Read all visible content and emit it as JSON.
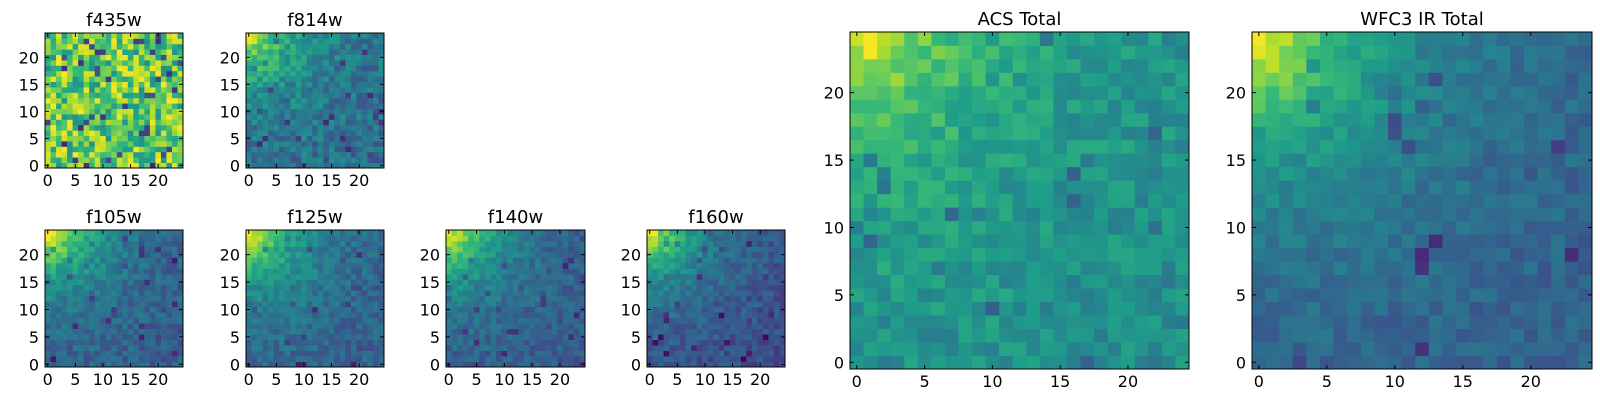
{
  "figure": {
    "background": "#ffffff"
  },
  "colormap": {
    "name": "viridis",
    "stops": [
      "#440154",
      "#482878",
      "#3e4989",
      "#31688e",
      "#26828e",
      "#1f9e89",
      "#35b779",
      "#6ece58",
      "#b5de2b",
      "#fde725"
    ]
  },
  "chart_data": [
    {
      "id": "f435w",
      "type": "heatmap",
      "title": "f435w",
      "grid": [
        25,
        25
      ],
      "xlim": [
        0,
        24
      ],
      "ylim": [
        0,
        24
      ],
      "xticks": [
        0,
        5,
        10,
        15,
        20
      ],
      "yticks": [
        0,
        5,
        10,
        15,
        20
      ],
      "description_values": {
        "pattern": "noise",
        "mean_level": 0.75,
        "spread": 0.25,
        "gradient": 0.0
      }
    },
    {
      "id": "f814w",
      "type": "heatmap",
      "title": "f814w",
      "grid": [
        25,
        25
      ],
      "xlim": [
        0,
        24
      ],
      "ylim": [
        0,
        24
      ],
      "xticks": [
        0,
        5,
        10,
        15,
        20
      ],
      "yticks": [
        0,
        5,
        10,
        15,
        20
      ],
      "description_values": {
        "pattern": "corner_gradient",
        "mean_level": 0.35,
        "spread": 0.12,
        "gradient": 0.6
      }
    },
    {
      "id": "f105w",
      "type": "heatmap",
      "title": "f105w",
      "grid": [
        25,
        25
      ],
      "xlim": [
        0,
        24
      ],
      "ylim": [
        0,
        24
      ],
      "xticks": [
        0,
        5,
        10,
        15,
        20
      ],
      "yticks": [
        0,
        5,
        10,
        15,
        20
      ],
      "description_values": {
        "pattern": "corner_gradient",
        "mean_level": 0.28,
        "spread": 0.09,
        "gradient": 0.75
      }
    },
    {
      "id": "f125w",
      "type": "heatmap",
      "title": "f125w",
      "grid": [
        25,
        25
      ],
      "xlim": [
        0,
        24
      ],
      "ylim": [
        0,
        24
      ],
      "xticks": [
        0,
        5,
        10,
        15,
        20
      ],
      "yticks": [
        0,
        5,
        10,
        15,
        20
      ],
      "description_values": {
        "pattern": "corner_gradient",
        "mean_level": 0.3,
        "spread": 0.09,
        "gradient": 0.72
      }
    },
    {
      "id": "f140w",
      "type": "heatmap",
      "title": "f140w",
      "grid": [
        25,
        25
      ],
      "xlim": [
        0,
        24
      ],
      "ylim": [
        0,
        24
      ],
      "xticks": [
        0,
        5,
        10,
        15,
        20
      ],
      "yticks": [
        0,
        5,
        10,
        15,
        20
      ],
      "description_values": {
        "pattern": "corner_gradient",
        "mean_level": 0.27,
        "spread": 0.08,
        "gradient": 0.75
      }
    },
    {
      "id": "f160w",
      "type": "heatmap",
      "title": "f160w",
      "grid": [
        25,
        25
      ],
      "xlim": [
        0,
        24
      ],
      "ylim": [
        0,
        24
      ],
      "xticks": [
        0,
        5,
        10,
        15,
        20
      ],
      "yticks": [
        0,
        5,
        10,
        15,
        20
      ],
      "description_values": {
        "pattern": "corner_gradient",
        "mean_level": 0.22,
        "spread": 0.08,
        "gradient": 0.8
      }
    },
    {
      "id": "acs_total",
      "type": "heatmap",
      "title": "ACS Total",
      "grid": [
        25,
        25
      ],
      "xlim": [
        0,
        24
      ],
      "ylim": [
        0,
        24
      ],
      "xticks": [
        0,
        5,
        10,
        15,
        20
      ],
      "yticks": [
        0,
        5,
        10,
        15,
        20
      ],
      "description_values": {
        "pattern": "corner_gradient",
        "mean_level": 0.48,
        "spread": 0.09,
        "gradient": 0.5
      }
    },
    {
      "id": "wfc3_ir_total",
      "type": "heatmap",
      "title": "WFC3 IR Total",
      "grid": [
        25,
        25
      ],
      "xlim": [
        0,
        24
      ],
      "ylim": [
        0,
        24
      ],
      "xticks": [
        0,
        5,
        10,
        15,
        20
      ],
      "yticks": [
        0,
        5,
        10,
        15,
        20
      ],
      "description_values": {
        "pattern": "corner_gradient",
        "mean_level": 0.3,
        "spread": 0.07,
        "gradient": 0.7
      }
    }
  ]
}
